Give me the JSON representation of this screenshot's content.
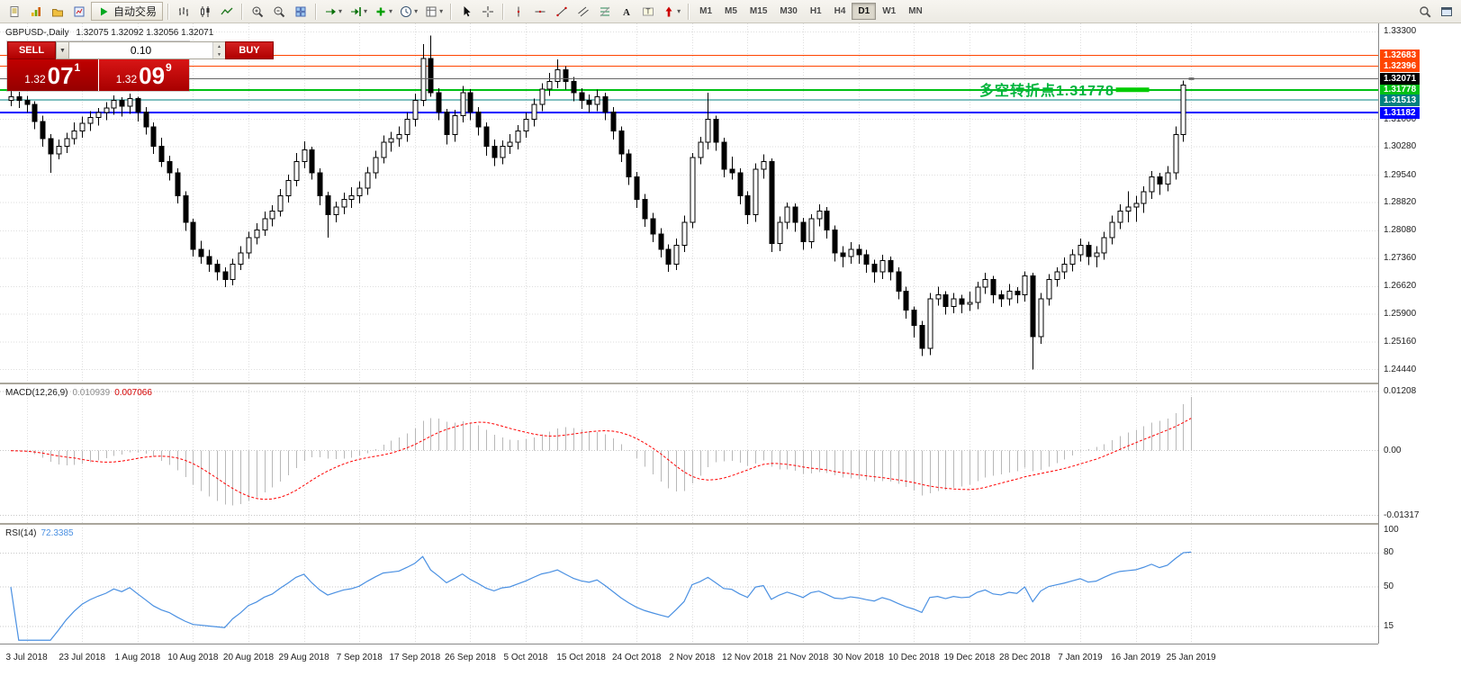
{
  "toolbar": {
    "autotrading_label": "自动交易",
    "timeframes": [
      "M1",
      "M5",
      "M15",
      "M30",
      "H1",
      "H4",
      "D1",
      "W1",
      "MN"
    ],
    "active_timeframe": "D1",
    "groups": [
      {
        "items": [
          {
            "name": "new-order",
            "icon": "new-order-icon"
          },
          {
            "name": "new-chart",
            "icon": "new-chart-icon"
          },
          {
            "name": "profiles",
            "icon": "profiles-icon"
          },
          {
            "name": "market-watch",
            "icon": "market-watch-icon"
          },
          {
            "name": "autotrading",
            "icon": "play-icon",
            "label_key": "autotrading_label"
          }
        ]
      },
      {
        "items": [
          {
            "name": "bar-chart",
            "icon": "bars-icon"
          },
          {
            "name": "candlestick-chart",
            "icon": "candles-icon"
          },
          {
            "name": "line-chart",
            "icon": "line-icon"
          }
        ]
      },
      {
        "items": [
          {
            "name": "zoom-in",
            "icon": "zoom-in-icon"
          },
          {
            "name": "zoom-out",
            "icon": "zoom-out-icon"
          },
          {
            "name": "tile-windows",
            "icon": "tile-icon"
          }
        ]
      },
      {
        "items": [
          {
            "name": "auto-scroll",
            "icon": "auto-scroll-icon",
            "dropdown": true
          },
          {
            "name": "chart-shift",
            "icon": "chart-shift-icon",
            "dropdown": true
          },
          {
            "name": "indicators",
            "icon": "indicators-icon",
            "dropdown": true
          },
          {
            "name": "periods",
            "icon": "clock-icon",
            "dropdown": true
          },
          {
            "name": "templates",
            "icon": "template-icon",
            "dropdown": true
          }
        ]
      },
      {
        "items": [
          {
            "name": "cursor",
            "icon": "cursor-icon"
          },
          {
            "name": "crosshair",
            "icon": "crosshair-icon"
          }
        ]
      },
      {
        "items": [
          {
            "name": "vertical-line",
            "icon": "vline-icon"
          },
          {
            "name": "horizontal-line",
            "icon": "hline-icon"
          },
          {
            "name": "trendline",
            "icon": "trendline-icon"
          },
          {
            "name": "equidistant-channel",
            "icon": "channel-icon"
          },
          {
            "name": "fibonacci-retracement",
            "icon": "fibo-icon"
          },
          {
            "name": "text",
            "icon": "text-icon"
          },
          {
            "name": "text-label",
            "icon": "label-icon"
          },
          {
            "name": "arrows",
            "icon": "arrows-icon",
            "dropdown": true
          }
        ]
      },
      {
        "type": "timeframes"
      }
    ],
    "right_items": [
      {
        "name": "search",
        "icon": "search-icon"
      },
      {
        "name": "new-window",
        "icon": "window-icon"
      }
    ]
  },
  "trade_panel": {
    "sell_label": "SELL",
    "buy_label": "BUY",
    "volume": "0.10",
    "sell_price": {
      "base": "1.32",
      "big": "07",
      "sup": "1"
    },
    "buy_price": {
      "base": "1.32",
      "big": "09",
      "sup": "9"
    }
  },
  "chart": {
    "symbol_label": "GBPUSD-,Daily",
    "ohlc_label": "1.32075 1.32092 1.32056 1.32071",
    "annotation": {
      "text": "多空转折点1.31778",
      "color": "#00b43c"
    }
  },
  "chart_data": {
    "type": "candlestick+indicators",
    "symbol": "GBPUSD-",
    "timeframe": "Daily",
    "current_bar_ohlc": [
      1.32075,
      1.32092,
      1.32056,
      1.32071
    ],
    "current_price": 1.32071,
    "price_axis": {
      "labels": [
        1.333,
        1.31,
        1.3028,
        1.2954,
        1.2882,
        1.2808,
        1.2736,
        1.2662,
        1.259,
        1.2516,
        1.2444
      ]
    },
    "time_labels": [
      "3 Jul 2018",
      "23 Jul 2018",
      "1 Aug 2018",
      "10 Aug 2018",
      "20 Aug 2018",
      "29 Aug 2018",
      "7 Sep 2018",
      "17 Sep 2018",
      "26 Sep 2018",
      "5 Oct 2018",
      "15 Oct 2018",
      "24 Oct 2018",
      "2 Nov 2018",
      "12 Nov 2018",
      "21 Nov 2018",
      "30 Nov 2018",
      "10 Dec 2018",
      "19 Dec 2018",
      "28 Dec 2018",
      "7 Jan 2019",
      "16 Jan 2019",
      "25 Jan 2019"
    ],
    "label_first_index": 2,
    "label_step": 7,
    "hlines": [
      {
        "price": 1.32683,
        "color": "#ff4500",
        "badge": true,
        "width": 1
      },
      {
        "price": 1.32396,
        "color": "#ff4500",
        "badge": true,
        "width": 1
      },
      {
        "price": 1.31778,
        "color": "#00c014",
        "badge": true,
        "width": 2
      },
      {
        "price": 1.31513,
        "color": "#008080",
        "badge": true,
        "width": 1
      },
      {
        "price": 1.31182,
        "color": "#0000ff",
        "badge": true,
        "width": 2
      }
    ],
    "objects": [
      {
        "type": "trend-segment",
        "price": 1.31778,
        "from_index": 139.5,
        "to_index": 143.7,
        "color": "#00cc00",
        "width": 5
      }
    ],
    "macd": {
      "label": "MACD(12,26,9)",
      "value_main": "0.010939",
      "value_signal": "0.007066",
      "fast": 12,
      "slow": 26,
      "signal": 9,
      "hist_color": "#b8b8b8",
      "signal_color": "#ff0000",
      "scale": [
        {
          "value": 0.01208,
          "label": "0.01208"
        },
        {
          "value": 0,
          "label": "0.00"
        },
        {
          "value": -0.01317,
          "label": "-0.01317"
        }
      ]
    },
    "rsi": {
      "label": "RSI(14)",
      "value": "72.3385",
      "period": 14,
      "line_color": "#4a90e2",
      "levels": [
        80,
        50,
        15
      ],
      "scale": [
        {
          "value": 100,
          "label": "100"
        },
        {
          "value": 80,
          "label": "80"
        },
        {
          "value": 50,
          "label": "50"
        },
        {
          "value": 15,
          "label": "15"
        }
      ]
    },
    "candles": [
      [
        1.315,
        1.3185,
        1.3135,
        1.316
      ],
      [
        1.316,
        1.3172,
        1.313,
        1.315
      ],
      [
        1.315,
        1.3162,
        1.3118,
        1.314
      ],
      [
        1.314,
        1.3148,
        1.3075,
        1.3095
      ],
      [
        1.3095,
        1.311,
        1.3028,
        1.305
      ],
      [
        1.305,
        1.3062,
        1.296,
        1.301
      ],
      [
        1.301,
        1.3048,
        1.2995,
        1.303
      ],
      [
        1.303,
        1.3065,
        1.3012,
        1.305
      ],
      [
        1.305,
        1.3092,
        1.3035,
        1.307
      ],
      [
        1.307,
        1.3108,
        1.3052,
        1.309
      ],
      [
        1.309,
        1.3122,
        1.307,
        1.3105
      ],
      [
        1.3105,
        1.313,
        1.3084,
        1.3118
      ],
      [
        1.3118,
        1.3145,
        1.3098,
        1.313
      ],
      [
        1.313,
        1.3163,
        1.3112,
        1.315
      ],
      [
        1.315,
        1.3158,
        1.3108,
        1.3135
      ],
      [
        1.3135,
        1.3168,
        1.3115,
        1.3155
      ],
      [
        1.3155,
        1.316,
        1.3095,
        1.312
      ],
      [
        1.312,
        1.3133,
        1.306,
        1.308
      ],
      [
        1.308,
        1.3092,
        1.301,
        1.303
      ],
      [
        1.303,
        1.3052,
        1.2975,
        1.299
      ],
      [
        1.299,
        1.3005,
        1.294,
        1.296
      ],
      [
        1.296,
        1.2972,
        1.288,
        1.29
      ],
      [
        1.29,
        1.2912,
        1.2808,
        1.283
      ],
      [
        1.283,
        1.284,
        1.274,
        1.276
      ],
      [
        1.276,
        1.2782,
        1.2722,
        1.274
      ],
      [
        1.274,
        1.2758,
        1.27,
        1.272
      ],
      [
        1.272,
        1.2732,
        1.2678,
        1.27
      ],
      [
        1.27,
        1.2712,
        1.266,
        1.268
      ],
      [
        1.268,
        1.2735,
        1.2665,
        1.272
      ],
      [
        1.272,
        1.2768,
        1.2705,
        1.275
      ],
      [
        1.275,
        1.2805,
        1.2735,
        1.279
      ],
      [
        1.279,
        1.2828,
        1.2772,
        1.281
      ],
      [
        1.281,
        1.2858,
        1.2795,
        1.284
      ],
      [
        1.284,
        1.2875,
        1.282,
        1.286
      ],
      [
        1.286,
        1.2918,
        1.2845,
        1.29
      ],
      [
        1.29,
        1.2955,
        1.2882,
        1.294
      ],
      [
        1.294,
        1.3012,
        1.2925,
        1.299
      ],
      [
        1.299,
        1.3043,
        1.2972,
        1.302
      ],
      [
        1.302,
        1.3028,
        1.2942,
        1.296
      ],
      [
        1.296,
        1.2972,
        1.2875,
        1.29
      ],
      [
        1.29,
        1.291,
        1.279,
        1.285
      ],
      [
        1.285,
        1.2885,
        1.283,
        1.287
      ],
      [
        1.287,
        1.2908,
        1.2852,
        1.289
      ],
      [
        1.289,
        1.2922,
        1.2868,
        1.29
      ],
      [
        1.29,
        1.2938,
        1.288,
        1.292
      ],
      [
        1.292,
        1.2975,
        1.2902,
        1.296
      ],
      [
        1.296,
        1.3018,
        1.2945,
        1.3
      ],
      [
        1.3,
        1.3058,
        1.2985,
        1.304
      ],
      [
        1.304,
        1.3068,
        1.3015,
        1.305
      ],
      [
        1.305,
        1.3082,
        1.3028,
        1.306
      ],
      [
        1.306,
        1.3118,
        1.3042,
        1.31
      ],
      [
        1.31,
        1.3168,
        1.3082,
        1.315
      ],
      [
        1.315,
        1.3298,
        1.3135,
        1.326
      ],
      [
        1.326,
        1.332,
        1.316,
        1.317
      ],
      [
        1.317,
        1.3182,
        1.3098,
        1.312
      ],
      [
        1.312,
        1.3128,
        1.3035,
        1.306
      ],
      [
        1.306,
        1.3125,
        1.3042,
        1.311
      ],
      [
        1.311,
        1.3188,
        1.3092,
        1.317
      ],
      [
        1.317,
        1.318,
        1.3098,
        1.312
      ],
      [
        1.312,
        1.3132,
        1.3058,
        1.308
      ],
      [
        1.308,
        1.3092,
        1.3005,
        1.303
      ],
      [
        1.303,
        1.3048,
        1.2978,
        1.3
      ],
      [
        1.3,
        1.3045,
        1.2982,
        1.303
      ],
      [
        1.303,
        1.3062,
        1.301,
        1.304
      ],
      [
        1.304,
        1.3085,
        1.3022,
        1.307
      ],
      [
        1.307,
        1.3118,
        1.3052,
        1.31
      ],
      [
        1.31,
        1.3155,
        1.3082,
        1.314
      ],
      [
        1.314,
        1.3195,
        1.3122,
        1.318
      ],
      [
        1.318,
        1.3222,
        1.3162,
        1.32
      ],
      [
        1.32,
        1.3258,
        1.3182,
        1.323
      ],
      [
        1.323,
        1.324,
        1.3178,
        1.32
      ],
      [
        1.32,
        1.3212,
        1.3148,
        1.317
      ],
      [
        1.317,
        1.3182,
        1.3128,
        1.315
      ],
      [
        1.315,
        1.3165,
        1.3118,
        1.314
      ],
      [
        1.314,
        1.3178,
        1.3122,
        1.316
      ],
      [
        1.316,
        1.317,
        1.3098,
        1.312
      ],
      [
        1.312,
        1.3132,
        1.3048,
        1.307
      ],
      [
        1.307,
        1.3082,
        1.2988,
        1.301
      ],
      [
        1.301,
        1.3022,
        1.2928,
        1.295
      ],
      [
        1.295,
        1.2962,
        1.2868,
        1.289
      ],
      [
        1.289,
        1.2905,
        1.2818,
        1.284
      ],
      [
        1.284,
        1.2855,
        1.2778,
        1.28
      ],
      [
        1.28,
        1.2815,
        1.2738,
        1.276
      ],
      [
        1.276,
        1.2772,
        1.27,
        1.272
      ],
      [
        1.272,
        1.2788,
        1.2705,
        1.277
      ],
      [
        1.277,
        1.2848,
        1.2752,
        1.283
      ],
      [
        1.283,
        1.3012,
        1.2815,
        1.3
      ],
      [
        1.3,
        1.3055,
        1.2982,
        1.304
      ],
      [
        1.304,
        1.317,
        1.3022,
        1.31
      ],
      [
        1.31,
        1.311,
        1.3018,
        1.304
      ],
      [
        1.304,
        1.3052,
        1.2948,
        1.297
      ],
      [
        1.297,
        1.3002,
        1.2942,
        1.296
      ],
      [
        1.296,
        1.2972,
        1.2878,
        1.29
      ],
      [
        1.29,
        1.2912,
        1.2825,
        1.285
      ],
      [
        1.285,
        1.2985,
        1.2832,
        1.297
      ],
      [
        1.297,
        1.3008,
        1.2945,
        1.299
      ],
      [
        1.299,
        1.2998,
        1.2752,
        1.2775
      ],
      [
        1.2775,
        1.2845,
        1.2755,
        1.283
      ],
      [
        1.283,
        1.2882,
        1.2812,
        1.287
      ],
      [
        1.287,
        1.288,
        1.2805,
        1.283
      ],
      [
        1.283,
        1.2842,
        1.2758,
        1.278
      ],
      [
        1.278,
        1.2852,
        1.2762,
        1.284
      ],
      [
        1.284,
        1.2878,
        1.282,
        1.286
      ],
      [
        1.286,
        1.287,
        1.2788,
        1.281
      ],
      [
        1.281,
        1.2822,
        1.2728,
        1.275
      ],
      [
        1.275,
        1.2768,
        1.2712,
        1.274
      ],
      [
        1.274,
        1.2778,
        1.2722,
        1.276
      ],
      [
        1.276,
        1.2772,
        1.2722,
        1.2745
      ],
      [
        1.2745,
        1.2758,
        1.2698,
        1.272
      ],
      [
        1.272,
        1.2732,
        1.2672,
        1.27
      ],
      [
        1.27,
        1.2745,
        1.2682,
        1.273
      ],
      [
        1.273,
        1.274,
        1.2678,
        1.27
      ],
      [
        1.27,
        1.2712,
        1.2628,
        1.265
      ],
      [
        1.265,
        1.2662,
        1.2578,
        1.26
      ],
      [
        1.26,
        1.261,
        1.2528,
        1.256
      ],
      [
        1.256,
        1.2572,
        1.248,
        1.25
      ],
      [
        1.25,
        1.2645,
        1.2482,
        1.263
      ],
      [
        1.263,
        1.2662,
        1.2612,
        1.264
      ],
      [
        1.264,
        1.265,
        1.2588,
        1.261
      ],
      [
        1.261,
        1.2645,
        1.2592,
        1.263
      ],
      [
        1.263,
        1.264,
        1.2592,
        1.2615
      ],
      [
        1.2615,
        1.2648,
        1.2598,
        1.262
      ],
      [
        1.262,
        1.2675,
        1.2602,
        1.266
      ],
      [
        1.266,
        1.2698,
        1.2642,
        1.268
      ],
      [
        1.268,
        1.269,
        1.2618,
        1.264
      ],
      [
        1.264,
        1.2652,
        1.2608,
        1.263
      ],
      [
        1.263,
        1.2668,
        1.2612,
        1.265
      ],
      [
        1.265,
        1.266,
        1.2618,
        1.264
      ],
      [
        1.264,
        1.2702,
        1.2622,
        1.269
      ],
      [
        1.269,
        1.2698,
        1.2444,
        1.253
      ],
      [
        1.253,
        1.2645,
        1.2512,
        1.263
      ],
      [
        1.263,
        1.2695,
        1.2612,
        1.268
      ],
      [
        1.268,
        1.2712,
        1.2662,
        1.27
      ],
      [
        1.27,
        1.2738,
        1.2682,
        1.272
      ],
      [
        1.272,
        1.276,
        1.2702,
        1.2745
      ],
      [
        1.2745,
        1.2788,
        1.2728,
        1.277
      ],
      [
        1.277,
        1.278,
        1.2718,
        1.274
      ],
      [
        1.274,
        1.2768,
        1.2712,
        1.275
      ],
      [
        1.275,
        1.2805,
        1.2732,
        1.279
      ],
      [
        1.279,
        1.2848,
        1.2772,
        1.283
      ],
      [
        1.283,
        1.2878,
        1.2812,
        1.286
      ],
      [
        1.286,
        1.2912,
        1.283,
        1.287
      ],
      [
        1.287,
        1.29,
        1.2832,
        1.288
      ],
      [
        1.288,
        1.2925,
        1.2855,
        1.291
      ],
      [
        1.291,
        1.2965,
        1.2892,
        1.295
      ],
      [
        1.295,
        1.296,
        1.2902,
        1.293
      ],
      [
        1.293,
        1.2978,
        1.2912,
        1.296
      ],
      [
        1.296,
        1.3082,
        1.2942,
        1.306
      ],
      [
        1.306,
        1.3202,
        1.3042,
        1.319
      ],
      [
        1.32075,
        1.32092,
        1.32056,
        1.32071
      ]
    ]
  }
}
